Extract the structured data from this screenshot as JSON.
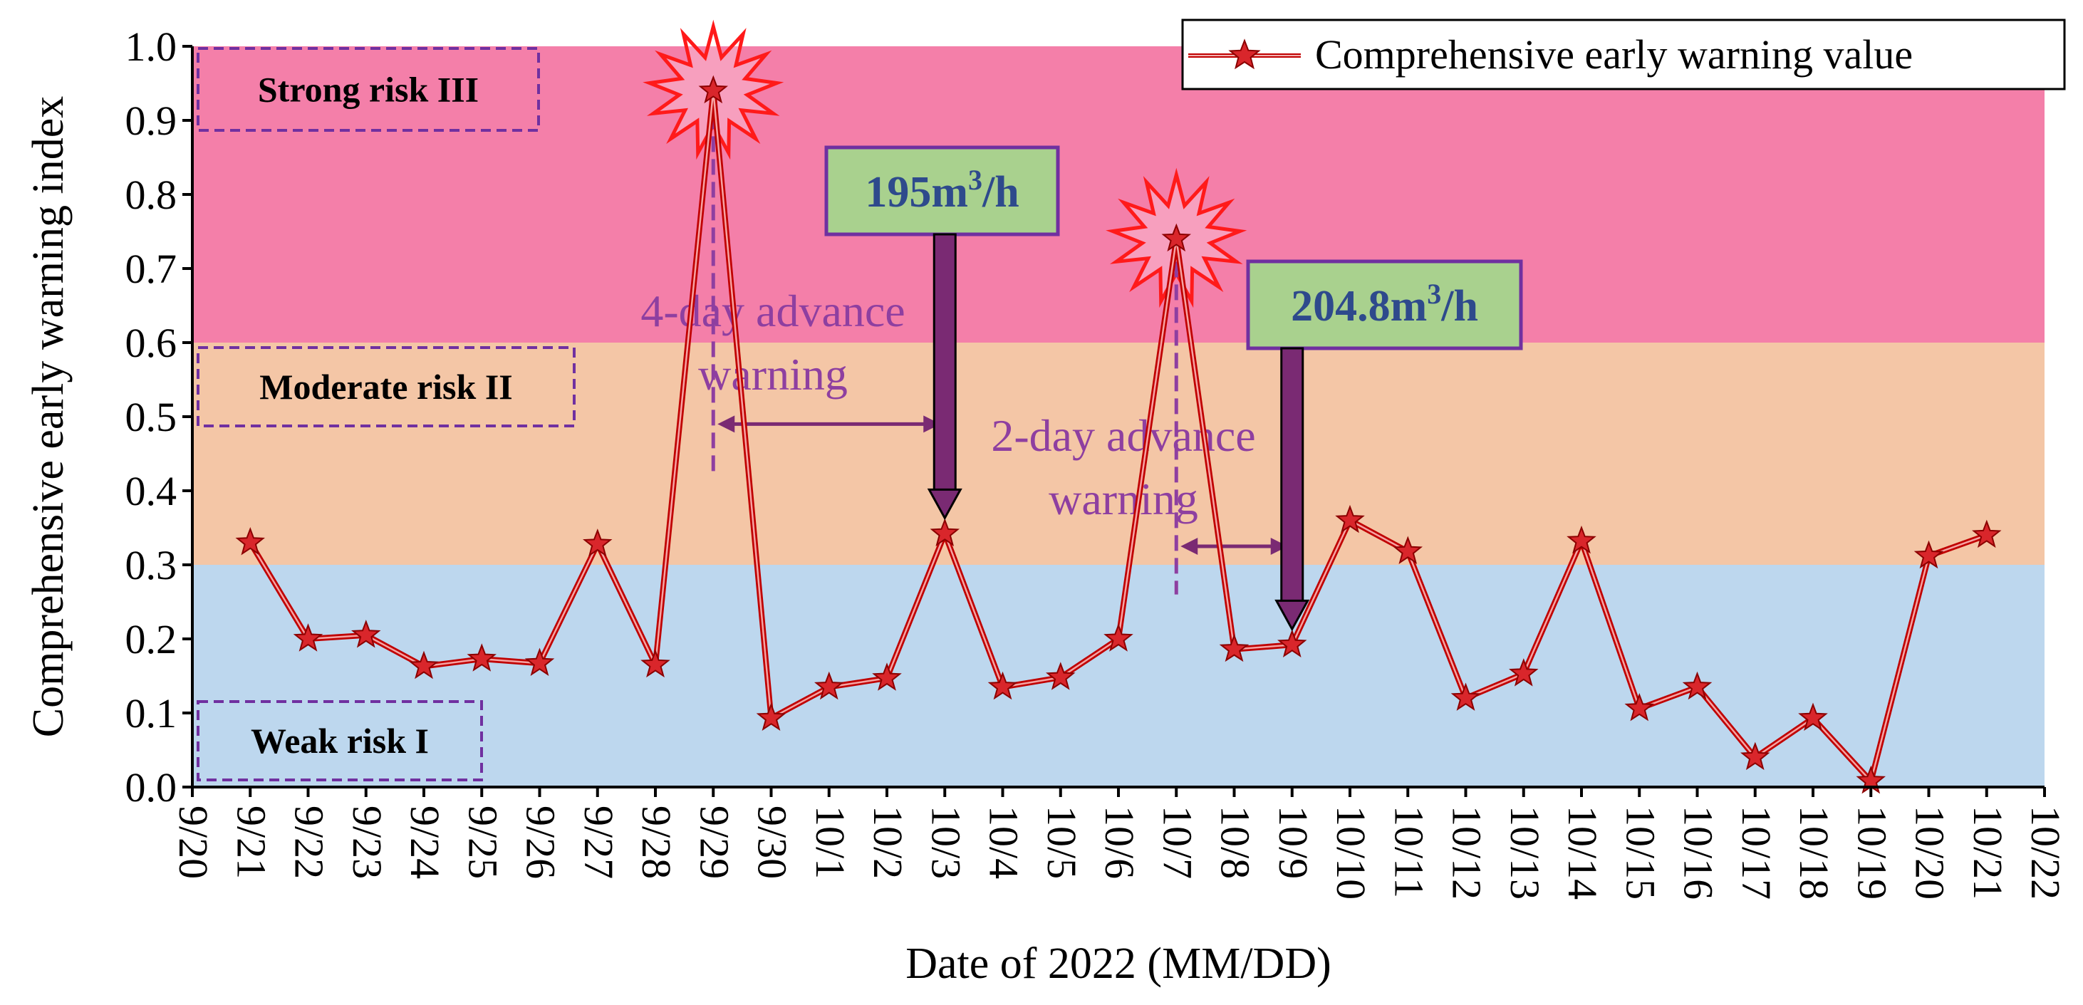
{
  "chart_data": {
    "type": "line",
    "title": "",
    "xlabel": "Date of 2022 (MM/DD)",
    "ylabel": "Comprehensive early warning index",
    "ylim": [
      0.0,
      1.0
    ],
    "yticks": [
      "0.0",
      "0.1",
      "0.2",
      "0.3",
      "0.4",
      "0.5",
      "0.6",
      "0.7",
      "0.8",
      "0.9",
      "1.0"
    ],
    "x_tick_labels": [
      "9/20",
      "9/21",
      "9/22",
      "9/23",
      "9/24",
      "9/25",
      "9/26",
      "9/27",
      "9/28",
      "9/29",
      "9/30",
      "10/1",
      "10/2",
      "10/3",
      "10/4",
      "10/5",
      "10/6",
      "10/7",
      "10/8",
      "10/9",
      "10/10",
      "10/11",
      "10/12",
      "10/13",
      "10/14",
      "10/15",
      "10/16",
      "10/17",
      "10/18",
      "10/19",
      "10/20",
      "10/21",
      "10/22"
    ],
    "grid": false,
    "legend_position": "top-right",
    "bands": [
      {
        "label": "Weak risk I",
        "from": 0.0,
        "to": 0.3,
        "color": "#bdd7ee"
      },
      {
        "label": "Moderate risk II",
        "from": 0.3,
        "to": 0.6,
        "color": "#f4c6a6"
      },
      {
        "label": "Strong risk III",
        "from": 0.6,
        "to": 1.0,
        "color": "#f47fa9"
      }
    ],
    "series": [
      {
        "name": "Comprehensive early warning value",
        "color": "#c00000",
        "x": [
          "9/21",
          "9/22",
          "9/23",
          "9/24",
          "9/25",
          "9/26",
          "9/27",
          "9/28",
          "9/29",
          "9/30",
          "10/1",
          "10/2",
          "10/3",
          "10/4",
          "10/5",
          "10/6",
          "10/7",
          "10/8",
          "10/9",
          "10/10",
          "10/11",
          "10/12",
          "10/13",
          "10/14",
          "10/15",
          "10/16",
          "10/17",
          "10/18",
          "10/19",
          "10/20",
          "10/21"
        ],
        "values": [
          0.33,
          0.2,
          0.205,
          0.163,
          0.173,
          0.167,
          0.328,
          0.165,
          0.94,
          0.093,
          0.135,
          0.147,
          0.342,
          0.135,
          0.148,
          0.2,
          0.74,
          0.186,
          0.192,
          0.36,
          0.318,
          0.12,
          0.153,
          0.332,
          0.106,
          0.135,
          0.04,
          0.093,
          0.008,
          0.312,
          0.34
        ]
      }
    ],
    "annotations": {
      "flow_labels": [
        {
          "base": "195m",
          "sup": "3",
          "unit": "/h",
          "date": "10/3",
          "target": 0.342
        },
        {
          "base": "204.8m",
          "sup": "3",
          "unit": "/h",
          "date": "10/9",
          "target": 0.192
        }
      ],
      "advance_warnings": [
        {
          "line1": "4-day advance",
          "line2": "warning",
          "from": "9/29",
          "to": "10/3",
          "y": 0.49
        },
        {
          "line1": "2-day advance",
          "line2": "warning",
          "from": "10/7",
          "to": "10/9",
          "y": 0.325
        }
      ],
      "burst_dates": [
        "9/29",
        "10/7"
      ]
    },
    "colors": {
      "line": "#c00000",
      "star_fill": "#d9262b",
      "label_box_border": "#7030a0",
      "flow_box_fill": "#a9d18e",
      "flow_text": "#2e4a8c",
      "arrow": "#7a2a73",
      "annotation_text": "#8e3fa0",
      "burst": "#ff1a1a"
    }
  }
}
